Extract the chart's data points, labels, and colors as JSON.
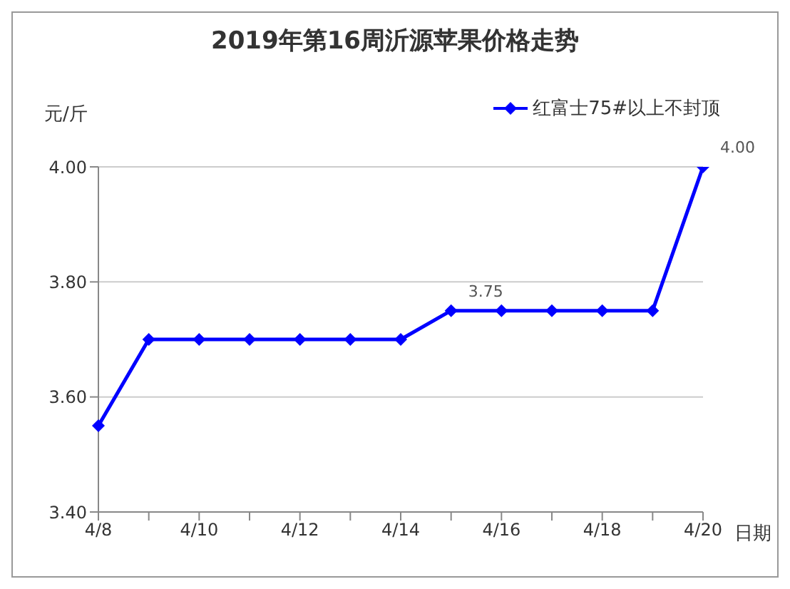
{
  "chart_data": {
    "type": "line",
    "title": "2019年第16周沂源苹果价格走势",
    "ylabel": "元/斤",
    "xlabel": "日期",
    "categories": [
      "4/8",
      null,
      "4/10",
      null,
      "4/12",
      null,
      "4/14",
      null,
      "4/16",
      null,
      "4/18",
      null,
      "4/20"
    ],
    "series": [
      {
        "name": "红富士75#以上不封顶",
        "color": "#0000ff",
        "values": [
          3.55,
          3.7,
          3.7,
          3.7,
          3.7,
          3.7,
          3.7,
          3.75,
          3.75,
          3.75,
          3.75,
          3.75,
          4.0
        ],
        "value_labels": [
          null,
          null,
          null,
          null,
          null,
          null,
          null,
          "3.75",
          null,
          null,
          null,
          null,
          "4.00"
        ]
      }
    ],
    "ylim": [
      3.4,
      4.0
    ],
    "yticks": [
      {
        "value": 3.4,
        "label": "3.40"
      },
      {
        "value": 3.6,
        "label": "3.60"
      },
      {
        "value": 3.8,
        "label": "3.80"
      },
      {
        "value": 4.0,
        "label": "4.00"
      }
    ],
    "grid": "y",
    "legend": "top right",
    "marker": "diamond",
    "line_style": "solid"
  }
}
